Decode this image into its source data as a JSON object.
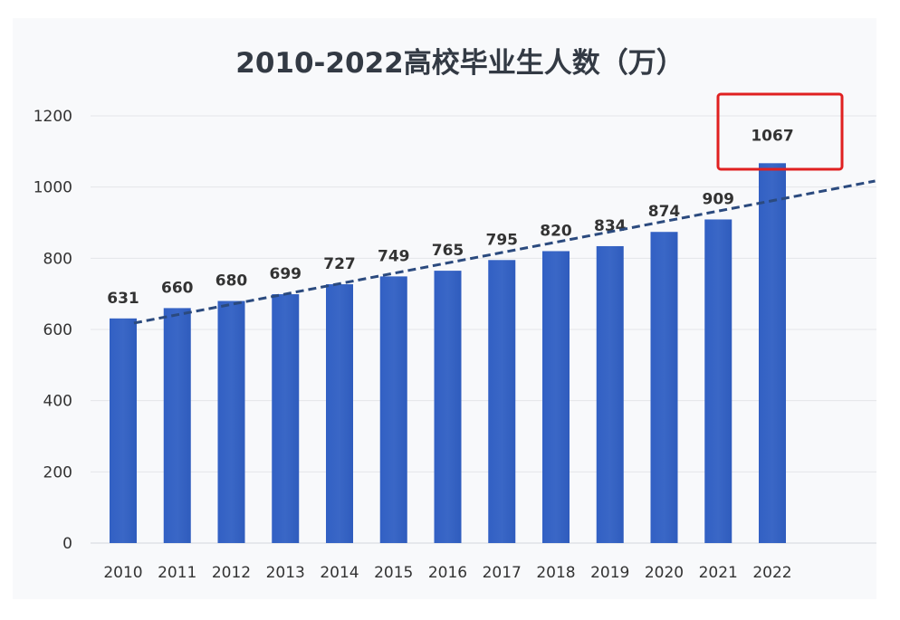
{
  "chart_data": {
    "type": "bar",
    "title": "2010-2022高校毕业生人数（万）",
    "categories": [
      "2010",
      "2011",
      "2012",
      "2013",
      "2014",
      "2015",
      "2016",
      "2017",
      "2018",
      "2019",
      "2020",
      "2021",
      "2022"
    ],
    "values": [
      631,
      660,
      680,
      699,
      727,
      749,
      765,
      795,
      820,
      834,
      874,
      909,
      1067
    ],
    "data_labels": [
      "631",
      "660",
      "680",
      "699",
      "727",
      "749",
      "765",
      "795",
      "820",
      "834",
      "874",
      "909",
      "1067"
    ],
    "ylim": [
      0,
      1200
    ],
    "yticks": [
      "0",
      "200",
      "400",
      "600",
      "800",
      "1000",
      "1200"
    ],
    "xlabel": "",
    "ylabel": "",
    "grid": true,
    "bar_color": "#3a67c6",
    "trendline": {
      "style": "dashed",
      "color": "#2b4a7e",
      "start": [
        2010.2,
        618
      ],
      "end": [
        2023.9,
        1017
      ]
    },
    "highlight": {
      "category": "2022",
      "color": "#e02020"
    }
  }
}
